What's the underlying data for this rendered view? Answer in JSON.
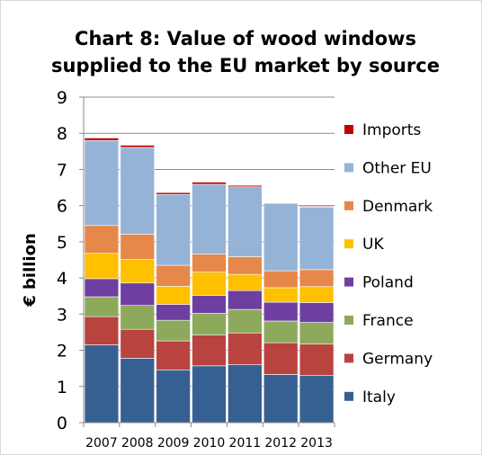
{
  "chart_data": {
    "type": "bar",
    "stacked": true,
    "title_line1": "Chart 8: Value of wood windows",
    "title_line2": "supplied to the EU market by source",
    "title": "Chart 8: Value of wood windows supplied to the EU market by source",
    "ylabel": "€ billion",
    "xlabel": "",
    "ylim": [
      0,
      9
    ],
    "yticks": [
      0,
      1,
      2,
      3,
      4,
      5,
      6,
      7,
      8,
      9
    ],
    "grid": true,
    "legend_position": "right",
    "categories": [
      "2007",
      "2008",
      "2009",
      "2010",
      "2011",
      "2012",
      "2013"
    ],
    "series": [
      {
        "name": "Italy",
        "color": "#376092",
        "values": [
          2.15,
          1.78,
          1.46,
          1.57,
          1.6,
          1.33,
          1.3
        ]
      },
      {
        "name": "Germany",
        "color": "#B9433F",
        "values": [
          0.78,
          0.8,
          0.8,
          0.85,
          0.88,
          0.88,
          0.87
        ]
      },
      {
        "name": "France",
        "color": "#8DA95B",
        "values": [
          0.55,
          0.66,
          0.57,
          0.6,
          0.65,
          0.6,
          0.6
        ]
      },
      {
        "name": "Poland",
        "color": "#6E3FA1",
        "values": [
          0.5,
          0.62,
          0.44,
          0.5,
          0.52,
          0.52,
          0.55
        ]
      },
      {
        "name": "UK",
        "color": "#FFC000",
        "values": [
          0.7,
          0.65,
          0.5,
          0.64,
          0.45,
          0.4,
          0.44
        ]
      },
      {
        "name": "Denmark",
        "color": "#E6884A",
        "values": [
          0.77,
          0.7,
          0.58,
          0.5,
          0.49,
          0.47,
          0.47
        ]
      },
      {
        "name": "Other EU",
        "color": "#95B3D7",
        "values": [
          2.35,
          2.4,
          1.96,
          1.93,
          1.93,
          1.85,
          1.73
        ]
      },
      {
        "name": "Imports",
        "color": "#C00000",
        "values": [
          0.07,
          0.06,
          0.05,
          0.06,
          0.04,
          0.02,
          0.02
        ]
      }
    ]
  }
}
